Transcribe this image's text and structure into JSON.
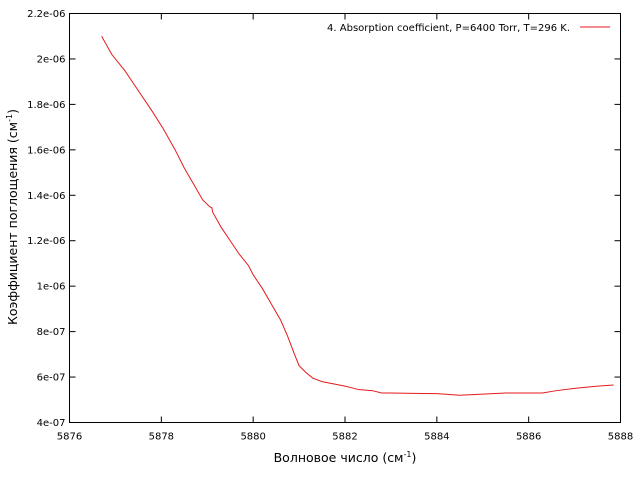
{
  "chart_data": {
    "type": "line",
    "title": "",
    "xlabel": "Волновое число (см",
    "xlabel_sup": "-1",
    "xlabel_tail": ")",
    "ylabel": "Коэффициент поглощения (см",
    "ylabel_sup": "-1",
    "ylabel_tail": ")",
    "xlim": [
      5876,
      5888
    ],
    "ylim": [
      4e-07,
      2.2e-06
    ],
    "xticks": [
      5876,
      5878,
      5880,
      5882,
      5884,
      5886,
      5888
    ],
    "xtick_labels": [
      "5876",
      "5878",
      "5880",
      "5882",
      "5884",
      "5886",
      "5888"
    ],
    "yticks": [
      4e-07,
      6e-07,
      8e-07,
      1e-06,
      1.2e-06,
      1.4e-06,
      1.6e-06,
      1.8e-06,
      2e-06,
      2.2e-06
    ],
    "ytick_labels": [
      "4e-07",
      "6e-07",
      "8e-07",
      "1e-06",
      "1.2e-06",
      "1.4e-06",
      "1.6e-06",
      "1.8e-06",
      "2e-06",
      "2.2e-06"
    ],
    "grid": false,
    "legend_position": "top-right",
    "series": [
      {
        "name": "4. Absorption coefficient, P=6400 Torr, T=296 K.",
        "color": "#e41a1c",
        "x": [
          5876.7,
          5876.92,
          5877.2,
          5877.5,
          5877.8,
          5878.05,
          5878.3,
          5878.5,
          5878.7,
          5878.9,
          5879.05,
          5879.1,
          5879.12,
          5879.3,
          5879.5,
          5879.7,
          5879.9,
          5880.0,
          5880.2,
          5880.4,
          5880.6,
          5880.75,
          5880.9,
          5881.0,
          5881.15,
          5881.3,
          5881.5,
          5881.75,
          5882.0,
          5882.3,
          5882.6,
          5882.8,
          5883.0,
          5883.5,
          5884.0,
          5884.5,
          5885.0,
          5885.5,
          5886.0,
          5886.3,
          5886.6,
          5887.0,
          5887.5,
          5887.85
        ],
        "y": [
          2.1e-06,
          2.02e-06,
          1.95e-06,
          1.86e-06,
          1.77e-06,
          1.69e-06,
          1.6e-06,
          1.52e-06,
          1.45e-06,
          1.38e-06,
          1.35e-06,
          1.345e-06,
          1.325e-06,
          1.26e-06,
          1.2e-06,
          1.14e-06,
          1.09e-06,
          1.05e-06,
          9.9e-07,
          9.2e-07,
          8.5e-07,
          7.8e-07,
          7e-07,
          6.5e-07,
          6.2e-07,
          5.95e-07,
          5.8e-07,
          5.7e-07,
          5.6e-07,
          5.45e-07,
          5.4e-07,
          5.3e-07,
          5.3e-07,
          5.28e-07,
          5.27e-07,
          5.2e-07,
          5.25e-07,
          5.3e-07,
          5.3e-07,
          5.3e-07,
          5.4e-07,
          5.5e-07,
          5.6e-07,
          5.65e-07
        ]
      }
    ]
  }
}
